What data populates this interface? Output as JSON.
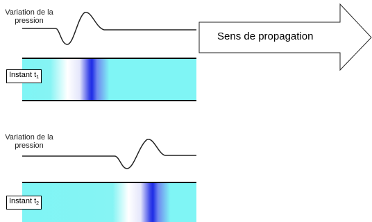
{
  "panels": [
    {
      "pressure_label_line1": "Variation de la",
      "pressure_label_line2": "pression",
      "instant_label": "Instant t",
      "instant_sub": "1"
    },
    {
      "pressure_label_line1": "Variation de la",
      "pressure_label_line2": "pression",
      "instant_label": "Instant t",
      "instant_sub": "2"
    }
  ],
  "arrow_label": "Sens de propagation",
  "colors": {
    "tube": "#7ff5f5",
    "wave": "#1a2be8",
    "line": "#222222"
  }
}
